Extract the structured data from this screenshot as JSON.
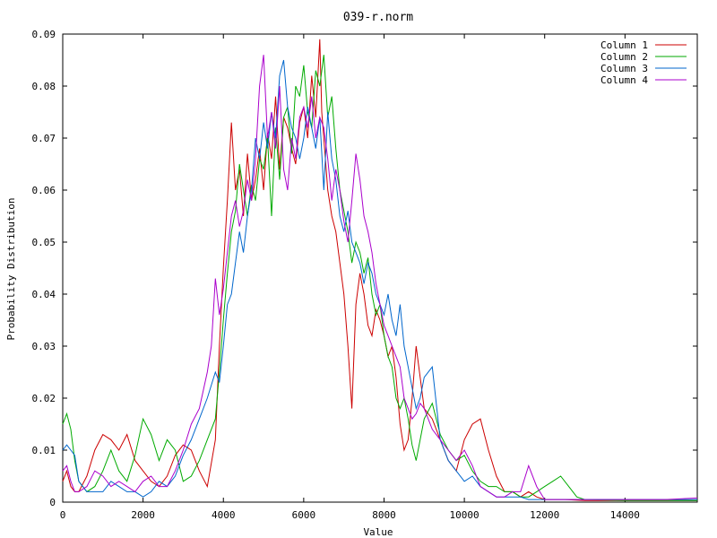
{
  "chart_data": {
    "type": "line",
    "title": "039-r.norm",
    "xlabel": "Value",
    "ylabel": "Probability Distribution",
    "xlim": [
      0,
      15800
    ],
    "ylim": [
      0,
      0.09
    ],
    "x_ticks": [
      0,
      2000,
      4000,
      6000,
      8000,
      10000,
      12000,
      14000
    ],
    "y_ticks": [
      0,
      0.01,
      0.02,
      0.03,
      0.04,
      0.05,
      0.06,
      0.07,
      0.08,
      0.09
    ],
    "x_tick_labels": [
      "0",
      "2000",
      "4000",
      "6000",
      "8000",
      "10000",
      "12000",
      "14000"
    ],
    "y_tick_labels": [
      "0",
      "0.01",
      "0.02",
      "0.03",
      "0.04",
      "0.05",
      "0.06",
      "0.07",
      "0.08",
      "0.09"
    ],
    "grid": false,
    "legend_position": "top-right",
    "series": [
      {
        "name": "Column 1",
        "color": "#cc0000",
        "x": [
          0,
          100,
          200,
          300,
          400,
          600,
          800,
          1000,
          1200,
          1400,
          1600,
          1800,
          2000,
          2200,
          2400,
          2600,
          2800,
          3000,
          3200,
          3400,
          3600,
          3800,
          3900,
          4000,
          4100,
          4200,
          4300,
          4400,
          4500,
          4600,
          4700,
          4800,
          4900,
          5000,
          5100,
          5200,
          5300,
          5400,
          5500,
          5600,
          5700,
          5800,
          5900,
          6000,
          6100,
          6200,
          6300,
          6400,
          6450,
          6500,
          6600,
          6700,
          6800,
          6900,
          7000,
          7100,
          7200,
          7300,
          7400,
          7500,
          7600,
          7700,
          7800,
          7900,
          8000,
          8100,
          8200,
          8300,
          8400,
          8500,
          8600,
          8700,
          8800,
          8900,
          9000,
          9200,
          9400,
          9600,
          9800,
          10000,
          10200,
          10400,
          10600,
          10800,
          11000,
          11200,
          11400,
          11600,
          11800,
          12000,
          12500,
          13000,
          14000,
          15000,
          15800
        ],
        "y": [
          0.004,
          0.006,
          0.003,
          0.002,
          0.002,
          0.005,
          0.01,
          0.013,
          0.012,
          0.01,
          0.013,
          0.008,
          0.006,
          0.004,
          0.003,
          0.005,
          0.009,
          0.011,
          0.01,
          0.006,
          0.003,
          0.012,
          0.03,
          0.045,
          0.058,
          0.073,
          0.06,
          0.064,
          0.055,
          0.067,
          0.058,
          0.062,
          0.068,
          0.06,
          0.071,
          0.066,
          0.078,
          0.064,
          0.074,
          0.072,
          0.068,
          0.065,
          0.073,
          0.076,
          0.07,
          0.082,
          0.074,
          0.089,
          0.075,
          0.07,
          0.06,
          0.055,
          0.052,
          0.046,
          0.04,
          0.03,
          0.018,
          0.038,
          0.044,
          0.04,
          0.034,
          0.032,
          0.037,
          0.035,
          0.032,
          0.028,
          0.03,
          0.024,
          0.015,
          0.01,
          0.012,
          0.02,
          0.03,
          0.024,
          0.018,
          0.016,
          0.012,
          0.008,
          0.006,
          0.012,
          0.015,
          0.016,
          0.01,
          0.005,
          0.002,
          0.002,
          0.001,
          0.002,
          0.001,
          0.0005,
          0.0005,
          0.0003,
          0.0003,
          0.0003,
          0.0003
        ]
      },
      {
        "name": "Column 2",
        "color": "#00aa00",
        "x": [
          0,
          100,
          200,
          300,
          400,
          600,
          800,
          1000,
          1200,
          1400,
          1600,
          1800,
          2000,
          2200,
          2400,
          2600,
          2800,
          3000,
          3200,
          3400,
          3600,
          3800,
          3900,
          4000,
          4100,
          4200,
          4300,
          4400,
          4500,
          4600,
          4700,
          4800,
          4900,
          5000,
          5100,
          5200,
          5300,
          5400,
          5500,
          5600,
          5700,
          5800,
          5900,
          6000,
          6100,
          6200,
          6300,
          6400,
          6500,
          6600,
          6700,
          6800,
          6900,
          7000,
          7100,
          7200,
          7300,
          7400,
          7500,
          7600,
          7700,
          7800,
          7900,
          8000,
          8100,
          8200,
          8300,
          8400,
          8500,
          8600,
          8700,
          8800,
          8900,
          9000,
          9200,
          9400,
          9600,
          9800,
          10000,
          10200,
          10400,
          10600,
          10800,
          11000,
          11200,
          11400,
          11600,
          11800,
          12000,
          12200,
          12400,
          12600,
          12800,
          13000,
          14000,
          15000,
          15800
        ],
        "y": [
          0.015,
          0.017,
          0.014,
          0.008,
          0.004,
          0.002,
          0.003,
          0.006,
          0.01,
          0.006,
          0.004,
          0.009,
          0.016,
          0.013,
          0.008,
          0.012,
          0.01,
          0.004,
          0.005,
          0.008,
          0.012,
          0.016,
          0.025,
          0.035,
          0.044,
          0.052,
          0.056,
          0.065,
          0.06,
          0.055,
          0.061,
          0.058,
          0.066,
          0.064,
          0.07,
          0.055,
          0.072,
          0.062,
          0.074,
          0.076,
          0.067,
          0.08,
          0.078,
          0.084,
          0.075,
          0.072,
          0.083,
          0.08,
          0.086,
          0.074,
          0.078,
          0.068,
          0.06,
          0.056,
          0.052,
          0.046,
          0.05,
          0.048,
          0.044,
          0.047,
          0.04,
          0.036,
          0.038,
          0.032,
          0.028,
          0.026,
          0.02,
          0.018,
          0.02,
          0.016,
          0.011,
          0.008,
          0.012,
          0.016,
          0.019,
          0.013,
          0.01,
          0.008,
          0.009,
          0.006,
          0.004,
          0.003,
          0.003,
          0.002,
          0.002,
          0.001,
          0.001,
          0.002,
          0.003,
          0.004,
          0.005,
          0.003,
          0.001,
          0.0005,
          0.0003,
          0.0003,
          0.0003
        ]
      },
      {
        "name": "Column 3",
        "color": "#0066cc",
        "x": [
          0,
          100,
          200,
          300,
          400,
          600,
          800,
          1000,
          1200,
          1400,
          1600,
          1800,
          2000,
          2200,
          2400,
          2600,
          2800,
          3000,
          3200,
          3400,
          3600,
          3800,
          3900,
          4000,
          4100,
          4200,
          4300,
          4400,
          4500,
          4600,
          4700,
          4800,
          4900,
          5000,
          5100,
          5200,
          5300,
          5400,
          5500,
          5600,
          5700,
          5800,
          5900,
          6000,
          6100,
          6200,
          6300,
          6400,
          6500,
          6600,
          6700,
          6800,
          6900,
          7000,
          7100,
          7200,
          7300,
          7400,
          7500,
          7600,
          7700,
          7800,
          7900,
          8000,
          8100,
          8200,
          8300,
          8400,
          8500,
          8600,
          8700,
          8800,
          8900,
          9000,
          9200,
          9400,
          9600,
          9800,
          10000,
          10200,
          10400,
          10600,
          10800,
          11000,
          11200,
          11400,
          11600,
          11800,
          12000,
          13000,
          14000,
          15000,
          15800
        ],
        "y": [
          0.01,
          0.011,
          0.01,
          0.009,
          0.004,
          0.002,
          0.002,
          0.002,
          0.004,
          0.003,
          0.002,
          0.002,
          0.001,
          0.002,
          0.004,
          0.003,
          0.005,
          0.009,
          0.012,
          0.016,
          0.02,
          0.025,
          0.023,
          0.03,
          0.038,
          0.04,
          0.046,
          0.052,
          0.048,
          0.055,
          0.06,
          0.07,
          0.066,
          0.073,
          0.068,
          0.075,
          0.07,
          0.082,
          0.085,
          0.076,
          0.072,
          0.07,
          0.066,
          0.07,
          0.076,
          0.072,
          0.068,
          0.074,
          0.06,
          0.075,
          0.066,
          0.062,
          0.055,
          0.052,
          0.056,
          0.05,
          0.048,
          0.046,
          0.042,
          0.046,
          0.044,
          0.04,
          0.038,
          0.036,
          0.04,
          0.035,
          0.032,
          0.038,
          0.03,
          0.026,
          0.022,
          0.018,
          0.02,
          0.024,
          0.026,
          0.012,
          0.008,
          0.006,
          0.004,
          0.005,
          0.003,
          0.002,
          0.001,
          0.001,
          0.001,
          0.001,
          0.0005,
          0.0005,
          0.0005,
          0.0005,
          0.0005,
          0.0005,
          0.0005
        ]
      },
      {
        "name": "Column 4",
        "color": "#aa00cc",
        "x": [
          0,
          100,
          200,
          300,
          400,
          600,
          800,
          1000,
          1200,
          1400,
          1600,
          1800,
          2000,
          2200,
          2400,
          2600,
          2800,
          3000,
          3200,
          3400,
          3600,
          3700,
          3800,
          3900,
          4000,
          4100,
          4200,
          4300,
          4400,
          4500,
          4600,
          4700,
          4800,
          4900,
          5000,
          5100,
          5200,
          5300,
          5400,
          5500,
          5600,
          5700,
          5800,
          5900,
          6000,
          6100,
          6200,
          6300,
          6400,
          6500,
          6600,
          6700,
          6800,
          6900,
          7000,
          7100,
          7200,
          7300,
          7400,
          7500,
          7600,
          7700,
          7800,
          7900,
          8000,
          8100,
          8200,
          8300,
          8400,
          8500,
          8600,
          8700,
          8800,
          8900,
          9000,
          9200,
          9400,
          9600,
          9800,
          10000,
          10200,
          10400,
          10600,
          10800,
          11000,
          11200,
          11400,
          11600,
          11800,
          12000,
          12500,
          13000,
          14000,
          15000,
          15800
        ],
        "y": [
          0.006,
          0.007,
          0.004,
          0.002,
          0.002,
          0.003,
          0.006,
          0.005,
          0.003,
          0.004,
          0.003,
          0.002,
          0.004,
          0.005,
          0.003,
          0.003,
          0.006,
          0.01,
          0.015,
          0.018,
          0.025,
          0.03,
          0.043,
          0.036,
          0.041,
          0.048,
          0.055,
          0.058,
          0.053,
          0.056,
          0.062,
          0.058,
          0.066,
          0.08,
          0.086,
          0.07,
          0.075,
          0.068,
          0.08,
          0.064,
          0.06,
          0.07,
          0.066,
          0.074,
          0.076,
          0.072,
          0.078,
          0.07,
          0.074,
          0.072,
          0.066,
          0.058,
          0.064,
          0.06,
          0.054,
          0.05,
          0.058,
          0.067,
          0.062,
          0.055,
          0.052,
          0.048,
          0.042,
          0.038,
          0.034,
          0.032,
          0.03,
          0.028,
          0.026,
          0.02,
          0.018,
          0.016,
          0.017,
          0.019,
          0.018,
          0.014,
          0.012,
          0.01,
          0.008,
          0.01,
          0.007,
          0.003,
          0.002,
          0.001,
          0.001,
          0.002,
          0.002,
          0.007,
          0.003,
          0.0005,
          0.0005,
          0.0005,
          0.0005,
          0.0005,
          0.0008
        ]
      }
    ]
  }
}
